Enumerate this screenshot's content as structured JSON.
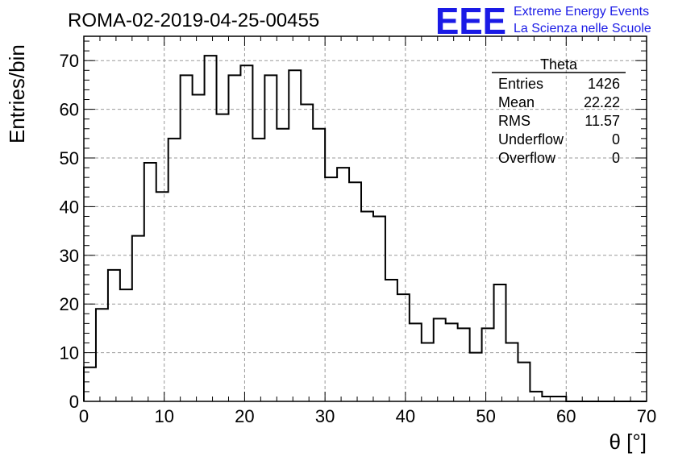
{
  "chart_data": {
    "type": "bar",
    "title": "ROMA-02-2019-04-25-00455",
    "xlabel": "θ [°]",
    "ylabel": "Entries/bin",
    "xlim": [
      0,
      70
    ],
    "ylim": [
      0,
      75
    ],
    "x_ticks": [
      0,
      10,
      20,
      30,
      40,
      50,
      60,
      70
    ],
    "y_ticks": [
      0,
      10,
      20,
      30,
      40,
      50,
      60,
      70
    ],
    "grid": true,
    "bin_width": 1.5,
    "bin_edges_start": 0,
    "values": [
      7,
      19,
      27,
      23,
      34,
      49,
      43,
      54,
      67,
      63,
      71,
      59,
      67,
      69,
      54,
      67,
      56,
      68,
      61,
      56,
      46,
      48,
      45,
      39,
      38,
      25,
      22,
      16,
      12,
      17,
      16,
      15,
      10,
      15,
      24,
      12,
      8,
      2,
      1,
      1,
      0,
      0,
      0,
      0,
      0,
      0,
      0
    ],
    "stats": {
      "name": "Theta",
      "rows": [
        {
          "label": "Entries",
          "value": "1426"
        },
        {
          "label": "Mean",
          "value": "22.22"
        },
        {
          "label": "RMS",
          "value": "11.57"
        },
        {
          "label": "Underflow",
          "value": "0"
        },
        {
          "label": "Overflow",
          "value": "0"
        }
      ]
    }
  },
  "logo": {
    "mark": "EEE",
    "line1": "Extreme Energy Events",
    "line2": "La Scienza nelle Scuole",
    "color": "#1a1ae6"
  }
}
